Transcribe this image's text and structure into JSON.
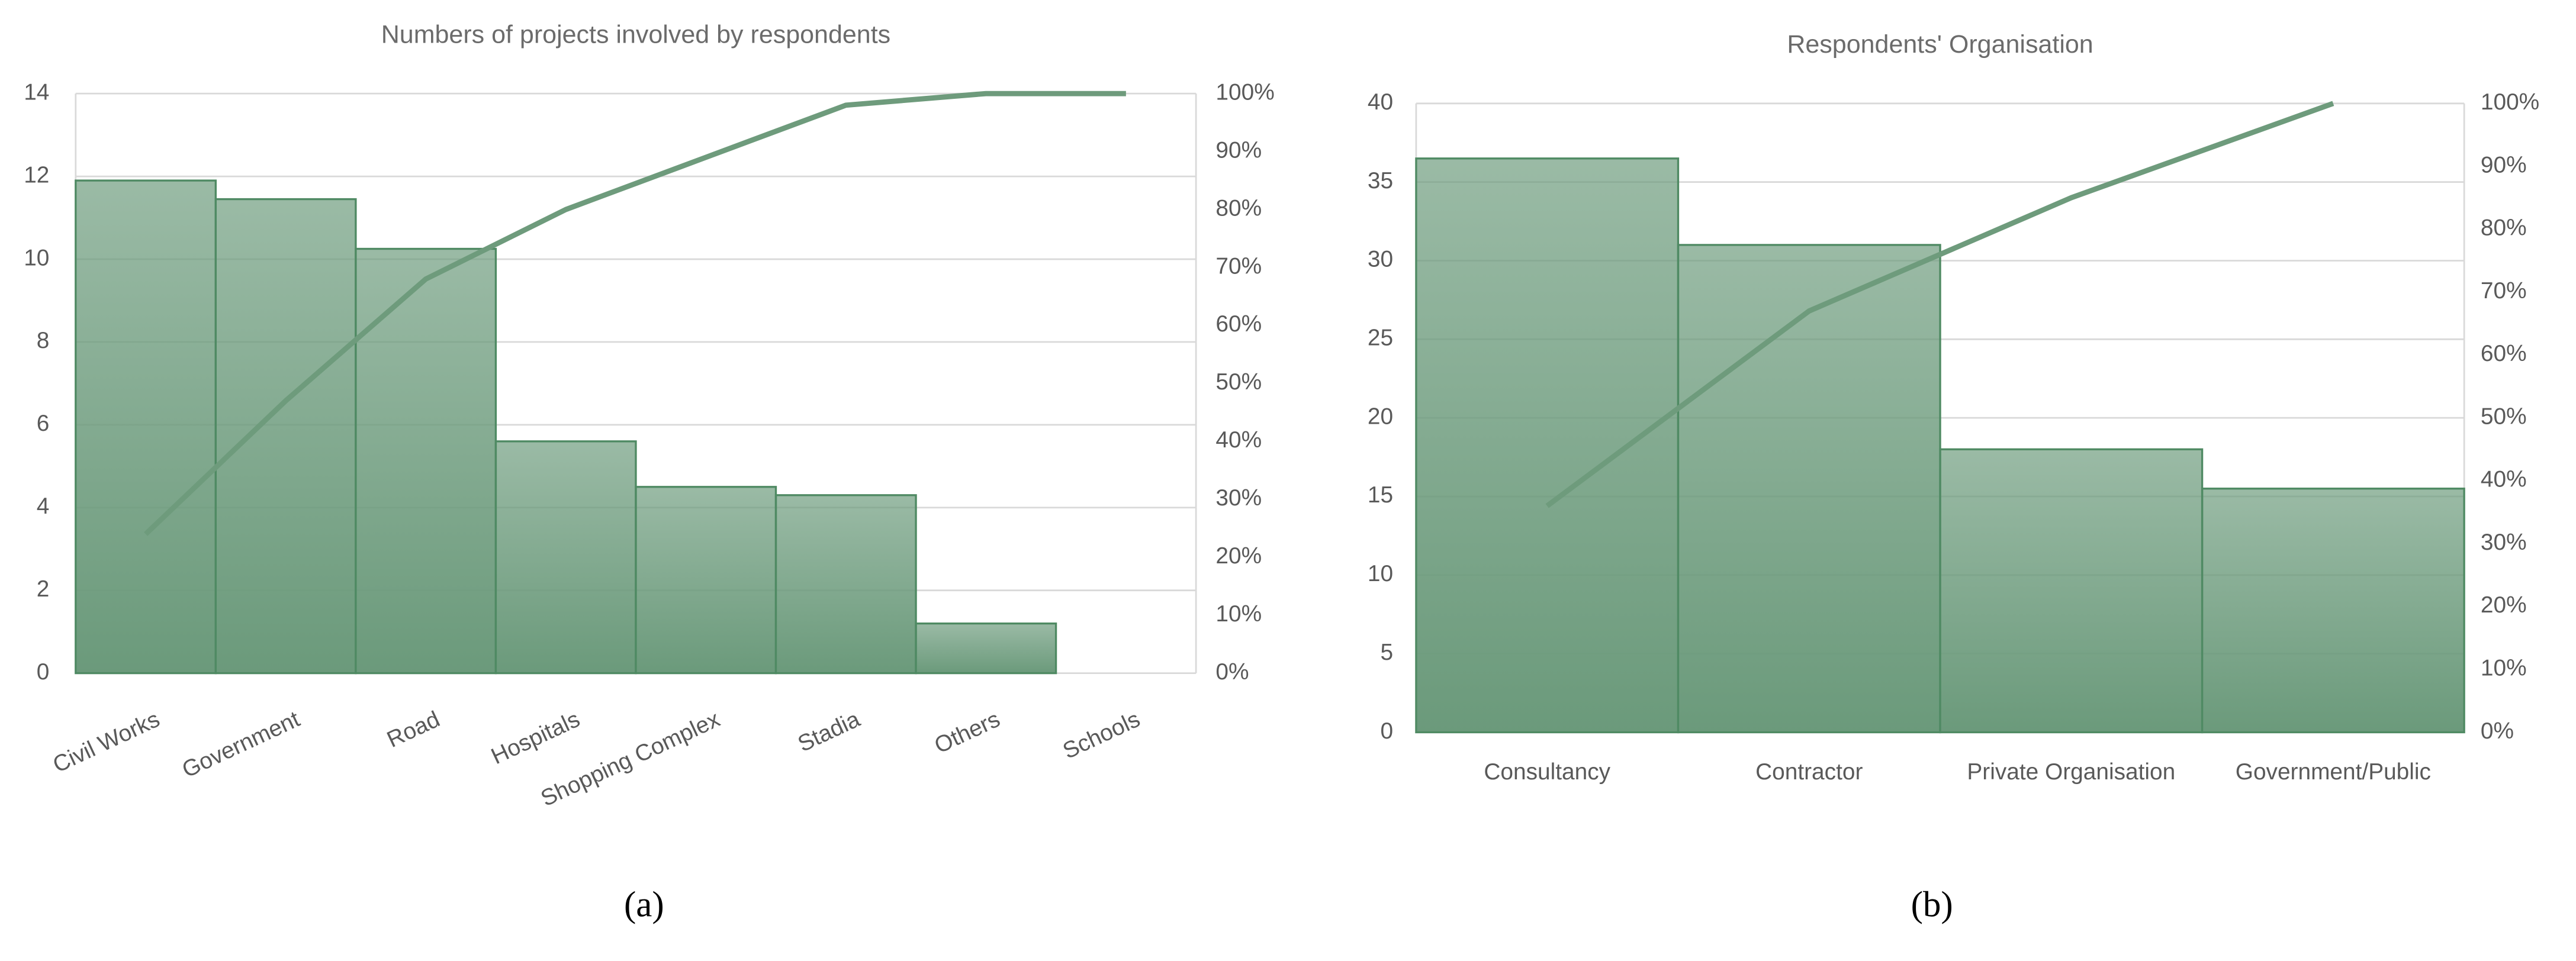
{
  "chart_data": [
    {
      "type": "pareto",
      "title": "Numbers of projects involved by respondents",
      "caption": "(a)",
      "categories": [
        "Civil Works",
        "Government",
        "Road",
        "Hospitals",
        "Shopping Complex",
        "Stadia",
        "Others",
        "Schools"
      ],
      "series": [
        {
          "type": "bar",
          "color": "#6b9a7b",
          "values": [
            11.9,
            11.45,
            10.25,
            5.6,
            4.5,
            4.3,
            1.2,
            0
          ]
        },
        {
          "type": "line",
          "axis": "y2",
          "color": "#6e9b7c",
          "values": [
            24,
            47,
            68,
            80,
            89,
            98,
            100,
            100
          ]
        }
      ],
      "ylim": [
        0,
        14
      ],
      "yticks": [
        0,
        2,
        4,
        6,
        8,
        10,
        12,
        14
      ],
      "y2lim": [
        0,
        100
      ],
      "y2ticks": [
        {
          "value": 0,
          "label": "0%"
        },
        {
          "value": 10,
          "label": "10%"
        },
        {
          "value": 20,
          "label": "20%"
        },
        {
          "value": 30,
          "label": "30%"
        },
        {
          "value": 40,
          "label": "40%"
        },
        {
          "value": 50,
          "label": "50%"
        },
        {
          "value": 60,
          "label": "60%"
        },
        {
          "value": 70,
          "label": "70%"
        },
        {
          "value": 80,
          "label": "80%"
        },
        {
          "value": 90,
          "label": "90%"
        },
        {
          "value": 100,
          "label": "100%"
        }
      ],
      "grid": true,
      "rotate_labels": true
    },
    {
      "type": "pareto",
      "title": "Respondents' Organisation",
      "caption": "(b)",
      "categories": [
        "Consultancy",
        "Contractor",
        "Private Organisation",
        "Government/Public"
      ],
      "series": [
        {
          "type": "bar",
          "color": "#6b9a7b",
          "values": [
            36.5,
            31,
            18,
            15.5
          ]
        },
        {
          "type": "line",
          "axis": "y2",
          "color": "#6e9b7c",
          "values": [
            36,
            67,
            85,
            100
          ]
        }
      ],
      "ylim": [
        0,
        40
      ],
      "yticks": [
        0,
        5,
        10,
        15,
        20,
        25,
        30,
        35,
        40
      ],
      "y2lim": [
        0,
        100
      ],
      "y2ticks": [
        {
          "value": 0,
          "label": "0%"
        },
        {
          "value": 10,
          "label": "10%"
        },
        {
          "value": 20,
          "label": "20%"
        },
        {
          "value": 30,
          "label": "30%"
        },
        {
          "value": 40,
          "label": "40%"
        },
        {
          "value": 50,
          "label": "50%"
        },
        {
          "value": 60,
          "label": "60%"
        },
        {
          "value": 70,
          "label": "70%"
        },
        {
          "value": 80,
          "label": "80%"
        },
        {
          "value": 90,
          "label": "90%"
        },
        {
          "value": 100,
          "label": "100%"
        }
      ],
      "grid": true,
      "rotate_labels": false
    }
  ]
}
